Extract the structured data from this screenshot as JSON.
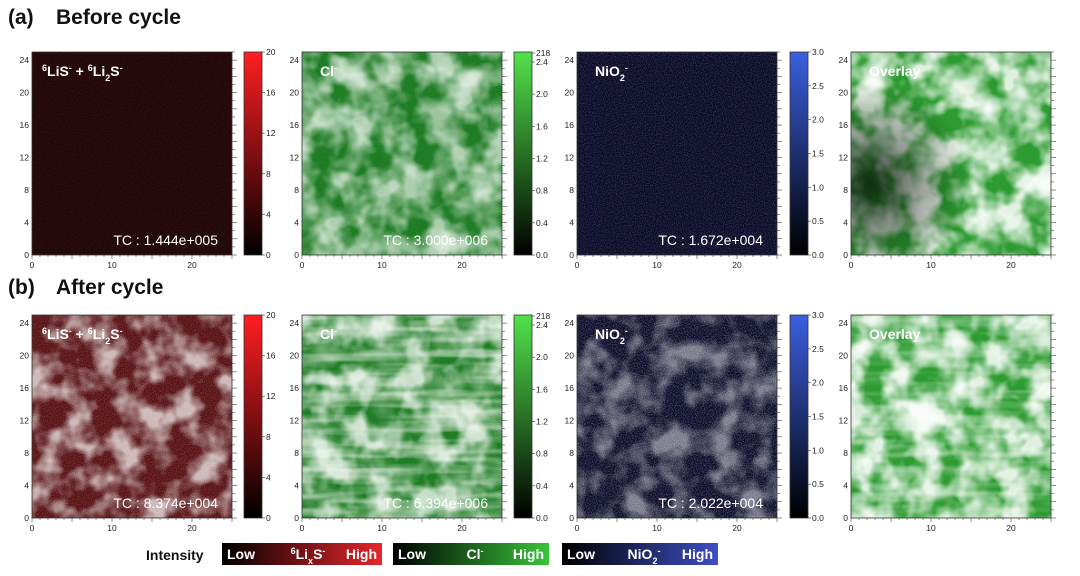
{
  "figure": {
    "panels": [
      {
        "tag": "(a)",
        "title": "Before cycle",
        "maps": [
          {
            "key": "lis",
            "label_main": "LiS",
            "label_html": "6LiS- + 6Li2S-",
            "tc": "TC : 1.444e+005",
            "colorbar_ticks": [
              "20",
              "16",
              "12",
              "8",
              "4",
              "0"
            ],
            "intensity_level": 0.05
          },
          {
            "key": "cl",
            "label_html": "Cl-",
            "tc": "TC : 3.000e+006",
            "colorbar_ticks": [
              "218",
              "2.4",
              "2.0",
              "1.6",
              "1.2",
              "0.8",
              "0.4",
              "0.0"
            ],
            "intensity_level": 0.55
          },
          {
            "key": "nio",
            "label_html": "NiO2-",
            "tc": "TC : 1.672e+004",
            "colorbar_ticks": [
              "3.0",
              "2.5",
              "2.0",
              "1.5",
              "1.0",
              "0.5",
              "0.0"
            ],
            "intensity_level": 0.15
          },
          {
            "key": "overlay",
            "label_html": "Overlay",
            "tc": "",
            "colorbar_ticks": [],
            "intensity_level": 0.5
          }
        ]
      },
      {
        "tag": "(b)",
        "title": "After cycle",
        "maps": [
          {
            "key": "lis",
            "label_html": "6LiS- + 6Li2S-",
            "tc": "TC : 8.374e+004",
            "colorbar_ticks": [
              "20",
              "16",
              "12",
              "8",
              "4",
              "0"
            ],
            "intensity_level": 0.55
          },
          {
            "key": "cl",
            "label_html": "Cl-",
            "tc": "TC : 6.394e+006",
            "colorbar_ticks": [
              "218",
              "2.4",
              "2.0",
              "1.6",
              "1.2",
              "0.8",
              "0.4",
              "0.0"
            ],
            "intensity_level": 0.75
          },
          {
            "key": "nio",
            "label_html": "NiO2-",
            "tc": "TC : 2.022e+004",
            "colorbar_ticks": [
              "3.0",
              "2.5",
              "2.0",
              "1.5",
              "1.0",
              "0.5",
              "0.0"
            ],
            "intensity_level": 0.35
          },
          {
            "key": "overlay",
            "label_html": "Overlay",
            "tc": "",
            "colorbar_ticks": [],
            "intensity_level": 0.6
          }
        ]
      }
    ],
    "axis": {
      "y_ticks": [
        "24",
        "20",
        "16",
        "12",
        "8",
        "4",
        "0"
      ],
      "x_ticks": [
        "0",
        "10",
        "20"
      ],
      "range": [
        0,
        25
      ]
    },
    "labels": {
      "lis_parts": [
        "6",
        "LiS",
        "-",
        " + ",
        "6",
        "Li",
        "2",
        "S",
        "-"
      ],
      "cl_parts": [
        "Cl",
        "-"
      ],
      "nio_parts": [
        "NiO",
        "2",
        "-"
      ],
      "overlay": "Overlay"
    },
    "legend": {
      "intensity_label": "Intensity",
      "bars": [
        {
          "low": "Low",
          "mid_parts": [
            "6",
            "Li",
            "x",
            "S",
            "-"
          ],
          "high": "High",
          "color_low": "#000000",
          "color_high": "#e8262b"
        },
        {
          "low": "Low",
          "mid_parts": [
            "Cl",
            "-"
          ],
          "high": "High",
          "color_low": "#000000",
          "color_high": "#39c43a"
        },
        {
          "low": "Low",
          "mid_parts": [
            "NiO",
            "2",
            "-"
          ],
          "high": "High",
          "color_low": "#000000",
          "color_high": "#3d4fc4"
        }
      ]
    },
    "colors": {
      "lis": "#e8262b",
      "cl": "#39c43a",
      "nio": "#3d4fc4"
    }
  }
}
